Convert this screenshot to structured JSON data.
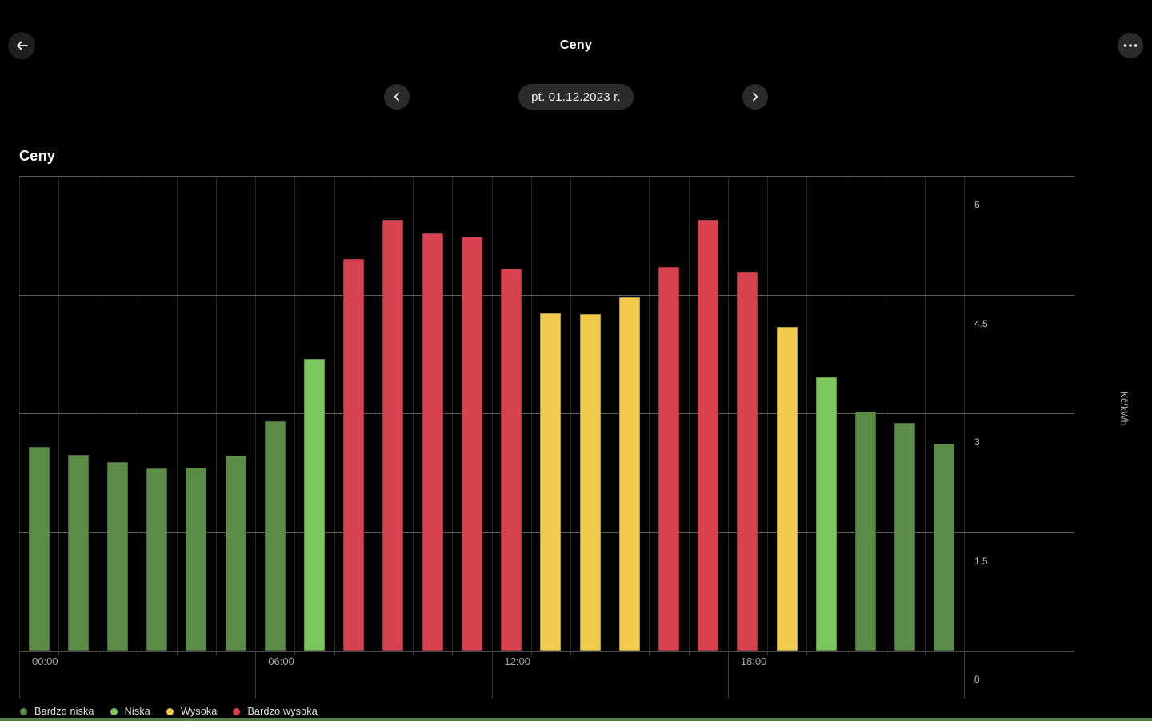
{
  "header": {
    "title": "Ceny",
    "back_icon": "arrow-left",
    "menu_icon": "ellipsis"
  },
  "date_nav": {
    "prev_icon": "chevron-left",
    "next_icon": "chevron-right",
    "date_label": "pt. 01.12.2023 r."
  },
  "chart": {
    "title": "Ceny",
    "unit_label": "Kč/kWh",
    "legend": [
      {
        "label": "Bardzo niska",
        "level": "bardzo_niska"
      },
      {
        "label": "Niska",
        "level": "niska"
      },
      {
        "label": "Wysoka",
        "level": "wysoka"
      },
      {
        "label": "Bardzo wysoka",
        "level": "bardzo_wysoka"
      }
    ]
  },
  "colors": {
    "bardzo_niska": "#5b8c45",
    "niska": "#7cc65e",
    "wysoka": "#f2cb4d",
    "bardzo_wysoka": "#d8414f",
    "bottom_accent": "#537d48",
    "background": "#000000"
  },
  "chart_data": {
    "type": "bar",
    "title": "Ceny",
    "ylabel": "Kč/kWh",
    "ylim": [
      0,
      6
    ],
    "y_ticks": [
      0,
      1.5,
      3,
      4.5,
      6
    ],
    "x_tick_labels": [
      "00:00",
      "06:00",
      "12:00",
      "18:00"
    ],
    "categories": [
      0,
      1,
      2,
      3,
      4,
      5,
      6,
      7,
      8,
      9,
      10,
      11,
      12,
      13,
      14,
      15,
      16,
      17,
      18,
      19,
      20,
      21,
      22,
      23
    ],
    "values": [
      2.58,
      2.47,
      2.38,
      2.3,
      2.31,
      2.46,
      2.9,
      3.69,
      4.95,
      5.44,
      5.27,
      5.23,
      4.83,
      4.26,
      4.25,
      4.46,
      4.85,
      5.44,
      4.79,
      4.09,
      3.45,
      3.02,
      2.88,
      2.62
    ],
    "levels": [
      "bardzo_niska",
      "bardzo_niska",
      "bardzo_niska",
      "bardzo_niska",
      "bardzo_niska",
      "bardzo_niska",
      "bardzo_niska",
      "niska",
      "bardzo_wysoka",
      "bardzo_wysoka",
      "bardzo_wysoka",
      "bardzo_wysoka",
      "bardzo_wysoka",
      "wysoka",
      "wysoka",
      "wysoka",
      "bardzo_wysoka",
      "bardzo_wysoka",
      "bardzo_wysoka",
      "wysoka",
      "niska",
      "bardzo_niska",
      "bardzo_niska",
      "bardzo_niska"
    ],
    "grid": true,
    "legend_position": "bottom-left"
  }
}
